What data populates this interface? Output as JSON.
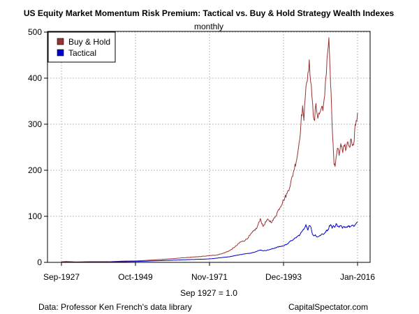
{
  "chart_data": {
    "type": "line",
    "title": "US Equity Market Momentum Risk Premium: Tactical vs. Buy & Hold Strategy Wealth Indexes",
    "subtitle": "monthly",
    "xlabel": "Sep 1927 = 1.0",
    "ylabel": "",
    "x_tick_labels": [
      "Sep-1927",
      "Oct-1949",
      "Nov-1971",
      "Dec-1993",
      "Jan-2016"
    ],
    "x_tick_years": [
      1927.67,
      1949.75,
      1971.83,
      1993.92,
      2016.0
    ],
    "xlim": [
      1927.67,
      2016.0
    ],
    "y_ticks": [
      0,
      100,
      200,
      300,
      400,
      500
    ],
    "ylim": [
      0,
      500
    ],
    "grid": true,
    "legend_position": "top-left",
    "series": [
      {
        "name": "Buy & Hold",
        "color": "#993333",
        "points": [
          [
            1927.67,
            1.0
          ],
          [
            1929.0,
            1.9
          ],
          [
            1932.0,
            0.9
          ],
          [
            1937.0,
            1.6
          ],
          [
            1942.0,
            1.4
          ],
          [
            1946.0,
            2.8
          ],
          [
            1950.0,
            3.2
          ],
          [
            1955.0,
            5.2
          ],
          [
            1960.0,
            7.5
          ],
          [
            1965.0,
            10.5
          ],
          [
            1969.0,
            12.5
          ],
          [
            1971.83,
            14.5
          ],
          [
            1974.0,
            16.0
          ],
          [
            1976.0,
            20.0
          ],
          [
            1978.0,
            26.0
          ],
          [
            1980.0,
            37.0
          ],
          [
            1981.0,
            44.0
          ],
          [
            1982.5,
            48.0
          ],
          [
            1983.5,
            55.0
          ],
          [
            1985.0,
            68.0
          ],
          [
            1986.0,
            75.0
          ],
          [
            1987.0,
            95.0
          ],
          [
            1987.8,
            78.0
          ],
          [
            1989.0,
            92.0
          ],
          [
            1990.5,
            88.0
          ],
          [
            1991.5,
            100.0
          ],
          [
            1992.5,
            115.0
          ],
          [
            1993.92,
            135.0
          ],
          [
            1995.0,
            150.0
          ],
          [
            1996.0,
            170.0
          ],
          [
            1997.0,
            200.0
          ],
          [
            1998.0,
            230.0
          ],
          [
            1998.6,
            262.0
          ],
          [
            1999.1,
            300.0
          ],
          [
            1999.6,
            340.0
          ],
          [
            2000.0,
            308.0
          ],
          [
            2000.4,
            358.0
          ],
          [
            2000.8,
            390.0
          ],
          [
            2001.2,
            412.0
          ],
          [
            2001.6,
            440.0
          ],
          [
            2002.0,
            392.0
          ],
          [
            2002.4,
            360.0
          ],
          [
            2002.8,
            318.0
          ],
          [
            2003.2,
            308.0
          ],
          [
            2003.6,
            345.0
          ],
          [
            2004.0,
            320.0
          ],
          [
            2004.6,
            322.0
          ],
          [
            2005.2,
            335.0
          ],
          [
            2005.8,
            340.0
          ],
          [
            2006.2,
            362.0
          ],
          [
            2006.7,
            410.0
          ],
          [
            2007.1,
            458.0
          ],
          [
            2007.45,
            488.0
          ],
          [
            2007.8,
            420.0
          ],
          [
            2008.1,
            370.0
          ],
          [
            2008.4,
            300.0
          ],
          [
            2008.7,
            258.0
          ],
          [
            2009.0,
            212.0
          ],
          [
            2009.3,
            208.0
          ],
          [
            2009.6,
            228.0
          ],
          [
            2010.0,
            248.0
          ],
          [
            2010.5,
            232.0
          ],
          [
            2011.0,
            258.0
          ],
          [
            2011.6,
            238.0
          ],
          [
            2012.1,
            252.0
          ],
          [
            2012.6,
            246.0
          ],
          [
            2013.1,
            262.0
          ],
          [
            2013.6,
            250.0
          ],
          [
            2014.1,
            268.0
          ],
          [
            2014.6,
            256.0
          ],
          [
            2015.0,
            264.0
          ],
          [
            2015.3,
            300.0
          ],
          [
            2015.6,
            308.0
          ],
          [
            2016.0,
            325.0
          ]
        ]
      },
      {
        "name": "Tactical",
        "color": "#0000cc",
        "points": [
          [
            1927.67,
            1.0
          ],
          [
            1932.0,
            0.8
          ],
          [
            1940.0,
            1.0
          ],
          [
            1946.0,
            1.5
          ],
          [
            1950.0,
            2.0
          ],
          [
            1955.0,
            3.2
          ],
          [
            1960.0,
            4.4
          ],
          [
            1965.0,
            5.8
          ],
          [
            1970.0,
            7.0
          ],
          [
            1971.83,
            7.5
          ],
          [
            1975.0,
            10.0
          ],
          [
            1978.0,
            12.5
          ],
          [
            1980.0,
            15.5
          ],
          [
            1982.0,
            18.0
          ],
          [
            1984.0,
            20.0
          ],
          [
            1986.0,
            24.0
          ],
          [
            1987.0,
            27.0
          ],
          [
            1988.0,
            25.0
          ],
          [
            1990.0,
            28.0
          ],
          [
            1992.0,
            33.0
          ],
          [
            1993.92,
            36.0
          ],
          [
            1995.0,
            40.0
          ],
          [
            1996.0,
            46.0
          ],
          [
            1997.0,
            50.0
          ],
          [
            1998.0,
            56.0
          ],
          [
            1998.8,
            60.0
          ],
          [
            1999.5,
            68.0
          ],
          [
            2000.0,
            72.0
          ],
          [
            2000.6,
            82.0
          ],
          [
            2001.2,
            70.0
          ],
          [
            2001.6,
            80.0
          ],
          [
            2002.0,
            78.0
          ],
          [
            2002.5,
            62.0
          ],
          [
            2003.0,
            58.0
          ],
          [
            2003.4,
            60.0
          ],
          [
            2004.0,
            55.0
          ],
          [
            2004.8,
            58.0
          ],
          [
            2005.5,
            62.0
          ],
          [
            2006.0,
            62.0
          ],
          [
            2006.6,
            68.0
          ],
          [
            2007.2,
            70.0
          ],
          [
            2007.6,
            80.0
          ],
          [
            2008.0,
            82.0
          ],
          [
            2008.4,
            74.0
          ],
          [
            2008.8,
            80.0
          ],
          [
            2009.2,
            76.0
          ],
          [
            2009.6,
            84.0
          ],
          [
            2010.0,
            78.0
          ],
          [
            2010.5,
            76.0
          ],
          [
            2011.0,
            80.0
          ],
          [
            2011.5,
            74.0
          ],
          [
            2012.0,
            78.0
          ],
          [
            2012.6,
            76.0
          ],
          [
            2013.2,
            79.0
          ],
          [
            2013.8,
            77.0
          ],
          [
            2014.4,
            80.0
          ],
          [
            2014.9,
            78.0
          ],
          [
            2015.3,
            82.0
          ],
          [
            2015.7,
            86.0
          ],
          [
            2016.0,
            88.0
          ]
        ]
      }
    ]
  },
  "footer": {
    "source": "Data: Professor Ken French's data library",
    "site": "CapitalSpectator.com"
  },
  "colors": {
    "grid": "#bdbdbd",
    "axis": "#000000",
    "buy_hold": "#993333",
    "tactical": "#0000cc"
  }
}
